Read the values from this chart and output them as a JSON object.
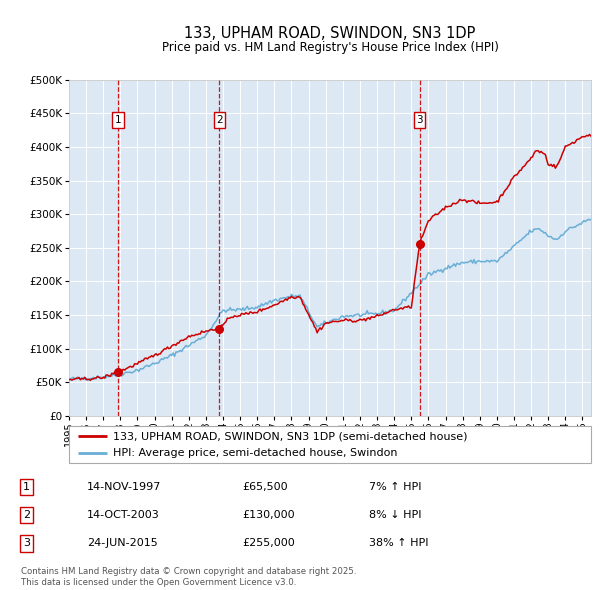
{
  "title": "133, UPHAM ROAD, SWINDON, SN3 1DP",
  "subtitle": "Price paid vs. HM Land Registry's House Price Index (HPI)",
  "legend_line1": "133, UPHAM ROAD, SWINDON, SN3 1DP (semi-detached house)",
  "legend_line2": "HPI: Average price, semi-detached house, Swindon",
  "transactions": [
    {
      "num": 1,
      "date": "14-NOV-1997",
      "price": 65500,
      "pct": "7%",
      "dir": "↑",
      "year_x": 1997.87
    },
    {
      "num": 2,
      "date": "14-OCT-2003",
      "price": 130000,
      "pct": "8%",
      "dir": "↓",
      "year_x": 2003.79
    },
    {
      "num": 3,
      "date": "24-JUN-2015",
      "price": 255000,
      "pct": "38%",
      "dir": "↑",
      "year_x": 2015.48
    }
  ],
  "footnote": "Contains HM Land Registry data © Crown copyright and database right 2025.\nThis data is licensed under the Open Government Licence v3.0.",
  "hpi_color": "#6aaed6",
  "price_color": "#cc0000",
  "plot_bg": "#dce9f5",
  "ylim": [
    0,
    500000
  ],
  "xlim_start": 1995,
  "xlim_end": 2025.5,
  "yticks": [
    0,
    50000,
    100000,
    150000,
    200000,
    250000,
    300000,
    350000,
    400000,
    450000,
    500000
  ],
  "xticks": [
    1995,
    1996,
    1997,
    1998,
    1999,
    2000,
    2001,
    2002,
    2003,
    2004,
    2005,
    2006,
    2007,
    2008,
    2009,
    2010,
    2011,
    2012,
    2013,
    2014,
    2015,
    2016,
    2017,
    2018,
    2019,
    2020,
    2021,
    2022,
    2023,
    2024,
    2025
  ]
}
